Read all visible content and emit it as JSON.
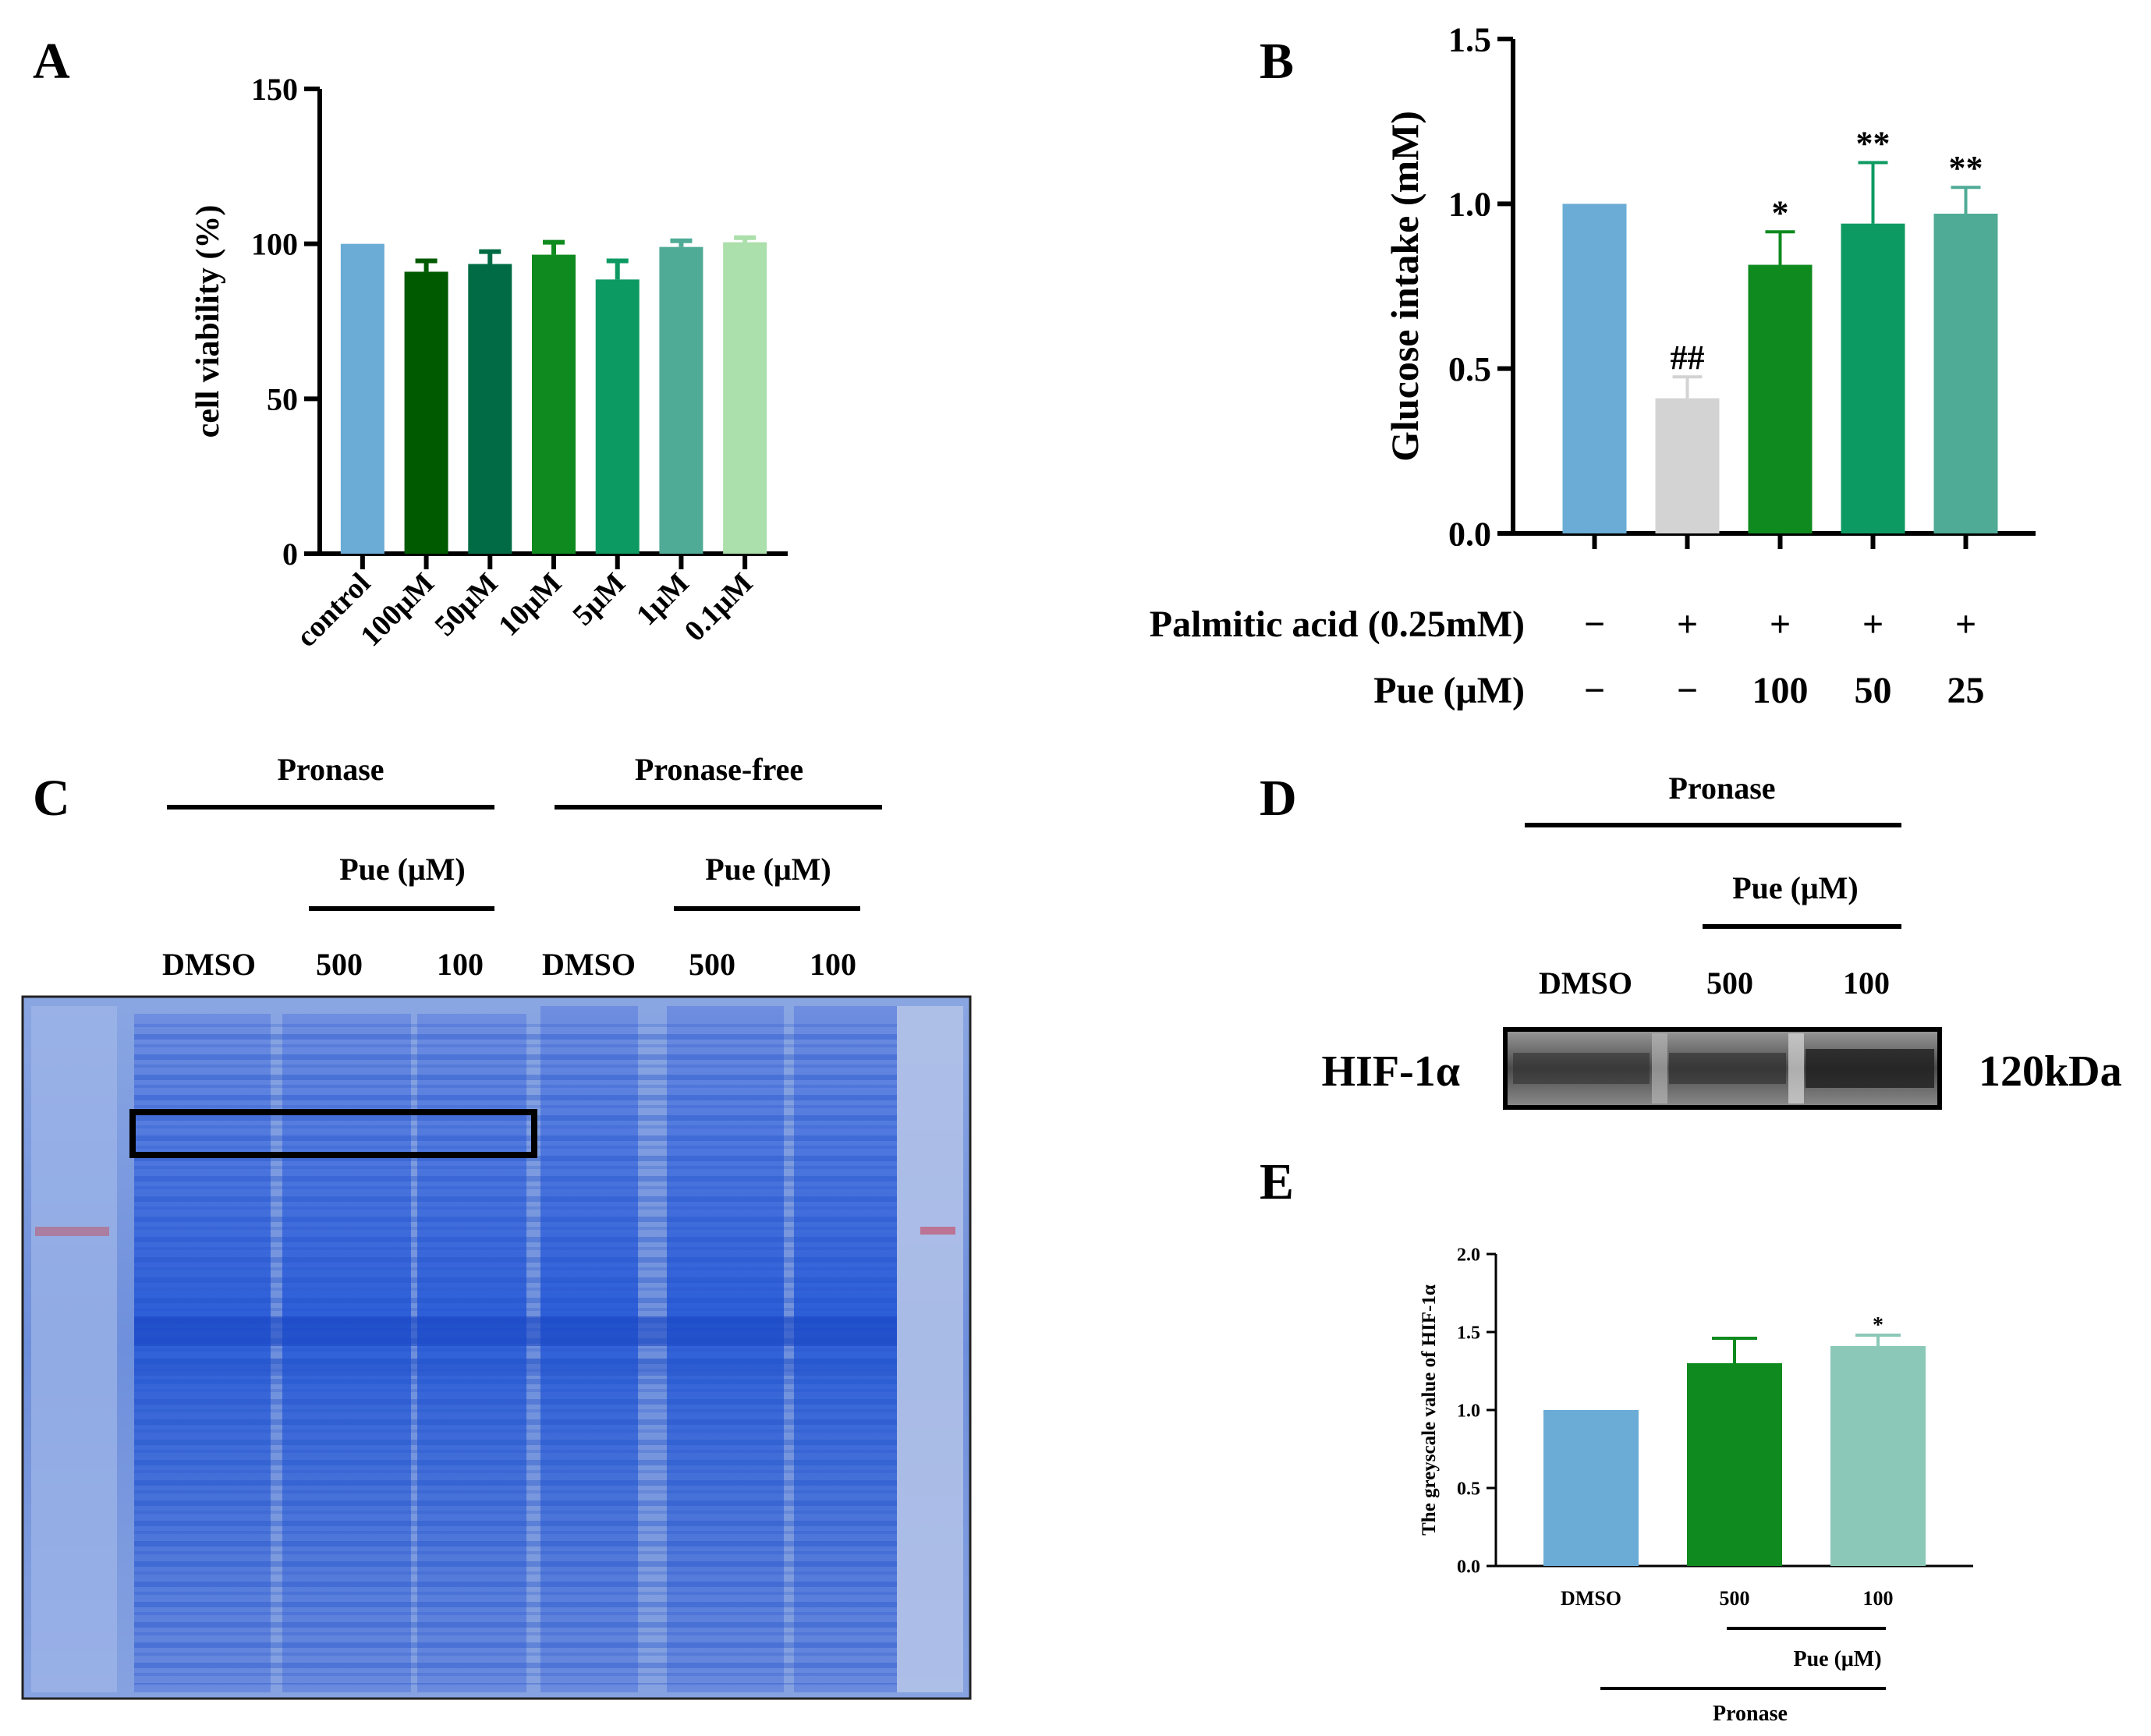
{
  "panels": {
    "A": "A",
    "B": "B",
    "C": "C",
    "D": "D",
    "E": "E"
  },
  "gel_c": {
    "group1_label": "Pronase",
    "group2_label": "Pronase-free",
    "sub_label": "Pue (μM)",
    "lanes": [
      "DMSO",
      "500",
      "100",
      "DMSO",
      "500",
      "100"
    ]
  },
  "blot_d": {
    "group_label": "Pronase",
    "sub_label": "Pue (μM)",
    "lanes": [
      "DMSO",
      "500",
      "100"
    ],
    "protein": "HIF-1α",
    "size": "120kDa"
  },
  "colors": {
    "a_bars": [
      "#6aacd6",
      "#005a00",
      "#006b44",
      "#0f8a1f",
      "#0d9a62",
      "#4fab95",
      "#abdfab"
    ],
    "b_bars": [
      "#6aacd6",
      "#d3d3d3",
      "#0f8a1f",
      "#0d9a62",
      "#4fab95"
    ],
    "e_bars": [
      "#6aacd6",
      "#0f8a1f",
      "#8cc8b8"
    ],
    "gel": "#6a8ad8"
  },
  "chart_data": [
    {
      "panel": "A",
      "type": "bar",
      "ylabel": "cell viability (%)",
      "ylim": [
        0,
        150
      ],
      "yticks": [
        "0",
        "50",
        "100",
        "150"
      ],
      "categories": [
        "control",
        "100μM",
        "50μM",
        "10μM",
        "5μM",
        "1μM",
        "0.1μM"
      ],
      "values": [
        100,
        91,
        93.5,
        96.5,
        88.5,
        99,
        100.5
      ],
      "errors": [
        0,
        3.5,
        4,
        4,
        6,
        2,
        1.5
      ]
    },
    {
      "panel": "B",
      "type": "bar",
      "ylabel": "Glucose intake (mM)",
      "ylim": [
        0,
        1.5
      ],
      "yticks": [
        "0.0",
        "0.5",
        "1.0",
        "1.5"
      ],
      "values": [
        1.0,
        0.41,
        0.815,
        0.94,
        0.97
      ],
      "errors": [
        0,
        0.065,
        0.1,
        0.185,
        0.08
      ],
      "annotations": [
        "",
        "##",
        "*",
        "**",
        "**"
      ],
      "rows": [
        {
          "label": "Palmitic acid (0.25mM)",
          "values": [
            "−",
            "+",
            "+",
            "+",
            "+"
          ]
        },
        {
          "label": "Pue (μM)",
          "values": [
            "−",
            "−",
            "100",
            "50",
            "25"
          ]
        }
      ]
    },
    {
      "panel": "E",
      "type": "bar",
      "ylabel": "The greyscale value of HIF-1α",
      "ylim": [
        0,
        2.0
      ],
      "yticks": [
        "0.0",
        "0.5",
        "1.0",
        "1.5",
        "2.0"
      ],
      "categories": [
        "DMSO",
        "500",
        "100"
      ],
      "values": [
        1.0,
        1.3,
        1.41
      ],
      "errors": [
        0,
        0.16,
        0.07
      ],
      "annotations": [
        "",
        "",
        "*"
      ],
      "sub_label": "Pue (μM)",
      "group_label": "Pronase"
    }
  ]
}
